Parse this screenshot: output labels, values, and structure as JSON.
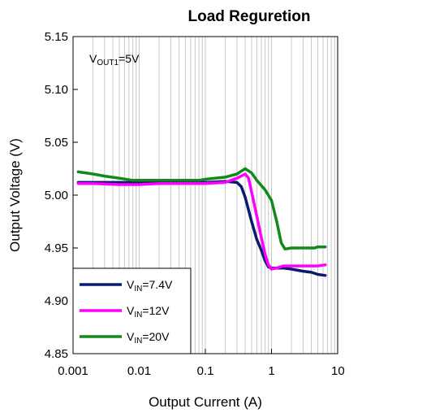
{
  "chart_data": {
    "type": "line",
    "title": "Load Reguretion",
    "xlabel": "Output Current (A)",
    "ylabel": "Output Voltage (V)",
    "xscale": "log",
    "xlim": [
      0.001,
      10
    ],
    "ylim": [
      4.85,
      5.15
    ],
    "x_ticks": [
      "0.001",
      "0.01",
      "0.1",
      "1",
      "10"
    ],
    "y_ticks": [
      "4.85",
      "4.90",
      "4.95",
      "5.00",
      "5.05",
      "5.10",
      "5.15"
    ],
    "grid": "vertical-minor-log",
    "annotation": {
      "main": "V",
      "sub": "OUT1",
      "rest": "=5V"
    },
    "legend_position": "bottom-left",
    "series": [
      {
        "name": "V_IN=7.4V",
        "legend": {
          "main": "V",
          "sub": "IN",
          "rest": "=7.4V"
        },
        "color": "#0a1a6e",
        "points": [
          [
            0.0012,
            5.012
          ],
          [
            0.002,
            5.012
          ],
          [
            0.005,
            5.012
          ],
          [
            0.01,
            5.012
          ],
          [
            0.02,
            5.012
          ],
          [
            0.05,
            5.012
          ],
          [
            0.1,
            5.012
          ],
          [
            0.2,
            5.013
          ],
          [
            0.3,
            5.012
          ],
          [
            0.35,
            5.008
          ],
          [
            0.4,
            4.998
          ],
          [
            0.5,
            4.975
          ],
          [
            0.6,
            4.958
          ],
          [
            0.7,
            4.948
          ],
          [
            0.8,
            4.938
          ],
          [
            0.9,
            4.932
          ],
          [
            1.0,
            4.931
          ],
          [
            1.5,
            4.931
          ],
          [
            2.0,
            4.93
          ],
          [
            3.0,
            4.928
          ],
          [
            4.0,
            4.927
          ],
          [
            5.0,
            4.925
          ],
          [
            6.5,
            4.924
          ]
        ]
      },
      {
        "name": "V_IN=12V",
        "legend": {
          "main": "V",
          "sub": "IN",
          "rest": "=12V"
        },
        "color": "#ff00ff",
        "points": [
          [
            0.0012,
            5.011
          ],
          [
            0.002,
            5.011
          ],
          [
            0.005,
            5.01
          ],
          [
            0.01,
            5.01
          ],
          [
            0.02,
            5.011
          ],
          [
            0.05,
            5.011
          ],
          [
            0.1,
            5.011
          ],
          [
            0.2,
            5.012
          ],
          [
            0.3,
            5.016
          ],
          [
            0.4,
            5.02
          ],
          [
            0.45,
            5.016
          ],
          [
            0.5,
            5.003
          ],
          [
            0.6,
            4.98
          ],
          [
            0.7,
            4.96
          ],
          [
            0.8,
            4.944
          ],
          [
            0.9,
            4.934
          ],
          [
            1.0,
            4.93
          ],
          [
            1.2,
            4.931
          ],
          [
            1.5,
            4.933
          ],
          [
            2.0,
            4.933
          ],
          [
            3.0,
            4.933
          ],
          [
            5.0,
            4.933
          ],
          [
            6.5,
            4.934
          ]
        ]
      },
      {
        "name": "V_IN=20V",
        "legend": {
          "main": "V",
          "sub": "IN",
          "rest": "=20V"
        },
        "color": "#118a1c",
        "points": [
          [
            0.0012,
            5.022
          ],
          [
            0.002,
            5.02
          ],
          [
            0.003,
            5.018
          ],
          [
            0.005,
            5.016
          ],
          [
            0.008,
            5.014
          ],
          [
            0.01,
            5.014
          ],
          [
            0.02,
            5.014
          ],
          [
            0.05,
            5.014
          ],
          [
            0.08,
            5.014
          ],
          [
            0.1,
            5.015
          ],
          [
            0.2,
            5.017
          ],
          [
            0.3,
            5.02
          ],
          [
            0.4,
            5.025
          ],
          [
            0.5,
            5.021
          ],
          [
            0.6,
            5.014
          ],
          [
            0.8,
            5.005
          ],
          [
            1.0,
            4.995
          ],
          [
            1.2,
            4.975
          ],
          [
            1.4,
            4.955
          ],
          [
            1.6,
            4.949
          ],
          [
            2.0,
            4.95
          ],
          [
            3.0,
            4.95
          ],
          [
            4.5,
            4.95
          ],
          [
            5.0,
            4.951
          ],
          [
            6.5,
            4.951
          ]
        ]
      }
    ]
  }
}
